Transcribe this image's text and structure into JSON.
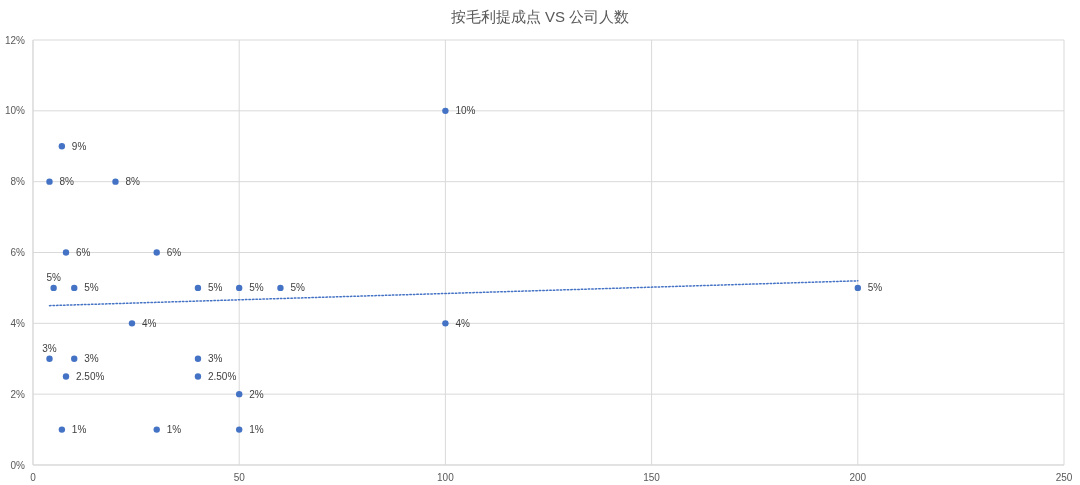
{
  "chart_data": {
    "type": "scatter",
    "title": "按毛利提成点 VS 公司人数",
    "xlim": [
      0,
      250
    ],
    "xticks": [
      0,
      50,
      100,
      150,
      200,
      250
    ],
    "ylim": [
      0,
      12
    ],
    "yticks": [
      {
        "value": 0,
        "label": "0%"
      },
      {
        "value": 2,
        "label": "2%"
      },
      {
        "value": 4,
        "label": "4%"
      },
      {
        "value": 6,
        "label": "6%"
      },
      {
        "value": 8,
        "label": "8%"
      },
      {
        "value": 10,
        "label": "10%"
      },
      {
        "value": 12,
        "label": "12%"
      }
    ],
    "grid": true,
    "series": [
      {
        "color": "#4472c4",
        "marker": "circle",
        "x": [
          7,
          4,
          20,
          100,
          8,
          30,
          5,
          10,
          40,
          50,
          60,
          200,
          24,
          100,
          4,
          10,
          40,
          8,
          40,
          50,
          7,
          30,
          50
        ],
        "values": [
          9,
          8,
          8,
          10,
          6,
          6,
          5,
          5,
          5,
          5,
          5,
          5,
          4,
          4,
          3,
          3,
          3,
          2.5,
          2.5,
          2,
          1,
          1,
          1
        ],
        "value_labels": [
          "9%",
          "8%",
          "8%",
          "10%",
          "6%",
          "6%",
          "5%",
          "5%",
          "5%",
          "5%",
          "5%",
          "5%",
          "4%",
          "4%",
          "3%",
          "3%",
          "3%",
          "2.50%",
          "2.50%",
          "2%",
          "1%",
          "1%",
          "1%"
        ]
      },
      {
        "type": "line",
        "color": "#4472c4",
        "line_style": "dotted",
        "x": [
          4,
          200
        ],
        "values": [
          4.5,
          5.2
        ]
      }
    ]
  }
}
